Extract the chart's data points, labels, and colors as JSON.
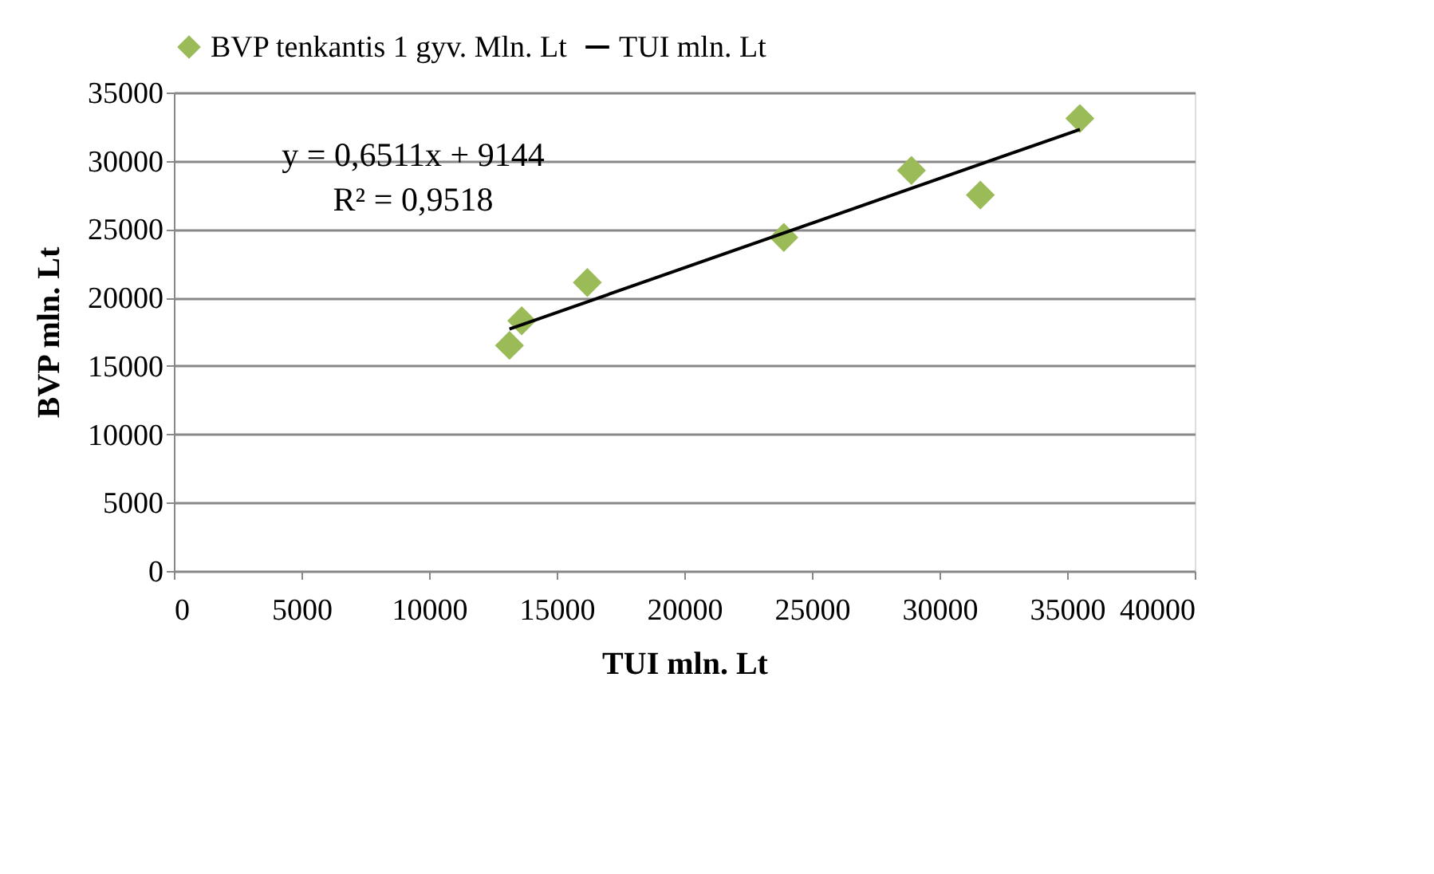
{
  "chart_data": {
    "type": "scatter",
    "xlabel": "TUI mln. Lt",
    "ylabel": "BVP mln. Lt",
    "series": [
      {
        "name": "BVP tenkantis 1 gyv. Mln. Lt",
        "color": "#9bbb59",
        "marker": "diamond",
        "x": [
          13150,
          13630,
          16200,
          23900,
          28900,
          31600,
          35500
        ],
        "values": [
          16500,
          18300,
          21100,
          24400,
          29300,
          27500,
          33100
        ]
      },
      {
        "name": "TUI mln. Lt",
        "type": "line",
        "color": "#000000",
        "marker": "none",
        "line_style": "solid",
        "x": [
          13150,
          35500
        ],
        "values": [
          17700,
          32300
        ]
      }
    ],
    "annotations": [
      "y = 0,6511x + 9144",
      "R² = 0,9518"
    ],
    "xlim": [
      0,
      40000
    ],
    "xticks": [
      0,
      5000,
      10000,
      15000,
      20000,
      25000,
      30000,
      35000,
      40000
    ],
    "ylim": [
      0,
      35000
    ],
    "yticks": [
      0,
      5000,
      10000,
      15000,
      20000,
      25000,
      30000,
      35000
    ],
    "grid": "y",
    "legend": "top"
  }
}
